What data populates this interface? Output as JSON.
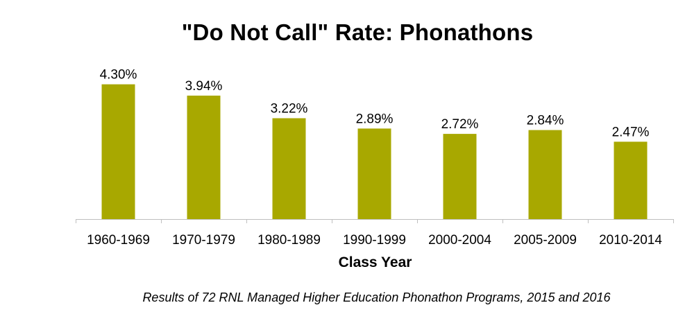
{
  "chart_data": {
    "type": "bar",
    "title": "\"Do Not Call\" Rate: Phonathons",
    "caption": "Results of 72 RNL Managed Higher Education Phonathon Programs, 2015 and 2016",
    "xlabel": "Class Year",
    "ylabel": "",
    "categories": [
      "1960-1969",
      "1970-1979",
      "1980-1989",
      "1990-1999",
      "2000-2004",
      "2005-2009",
      "2010-2014"
    ],
    "values": [
      4.3,
      3.94,
      3.22,
      2.89,
      2.72,
      2.84,
      2.47
    ],
    "data_labels": [
      "4.30%",
      "3.94%",
      "3.22%",
      "2.89%",
      "2.72%",
      "2.84%",
      "2.47%"
    ],
    "ylim": [
      0,
      4.9
    ],
    "grid": false,
    "legend": "none",
    "bar_color": "#A8A800",
    "axis_color": "#BFBFBF"
  }
}
